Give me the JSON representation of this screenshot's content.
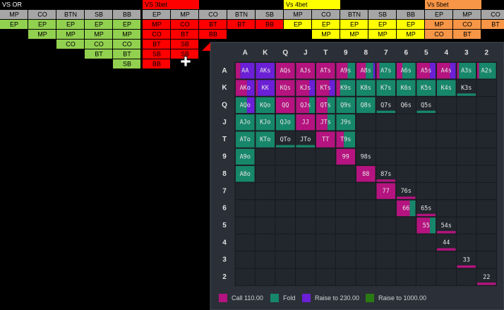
{
  "nav": {
    "groups": [
      {
        "title": "VS OR",
        "title_color": "#000000",
        "color": "#92d050",
        "headers": [
          "MP",
          "CO",
          "BTN",
          "SB",
          "BB"
        ],
        "rows": [
          [
            "EP",
            "EP",
            "EP",
            "EP",
            "EP"
          ],
          [
            null,
            "MP",
            "MP",
            "MP",
            "MP"
          ],
          [
            null,
            null,
            "CO",
            "CO",
            "CO"
          ],
          [
            null,
            null,
            null,
            "BT",
            "BT"
          ],
          [
            null,
            null,
            null,
            null,
            "SB"
          ]
        ]
      },
      {
        "title": "VS 3bet",
        "title_color": "#ff0000",
        "color": "#ff0000",
        "headers": [
          "EP",
          "MP",
          "CO",
          "BTN",
          "SB"
        ],
        "rows": [
          [
            "MP",
            "CO",
            "BT",
            "BT",
            "BB"
          ],
          [
            "CO",
            "BT",
            "BB",
            null,
            null
          ],
          [
            "BT",
            "SB",
            null,
            null,
            null
          ],
          [
            "SB",
            "SB",
            null,
            null,
            null
          ],
          [
            "BB",
            null,
            null,
            null,
            null
          ]
        ]
      },
      {
        "title": "Vs 4bet",
        "title_color": "#ffff00",
        "color": "#ffff00",
        "headers": [
          "MP",
          "CO",
          "BTN",
          "SB",
          "BB"
        ],
        "rows": [
          [
            "EP",
            "EP",
            "EP",
            "EP",
            "EP"
          ],
          [
            null,
            "MP",
            "MP",
            "MP",
            "MP"
          ]
        ]
      },
      {
        "title": "Vs 5bet",
        "title_color": "#f79646",
        "color": "#f79646",
        "headers": [
          "EP",
          "MP",
          "CO"
        ],
        "rows": [
          [
            "MP",
            "CO",
            "BT"
          ],
          [
            "CO",
            "BT",
            null
          ]
        ]
      }
    ]
  },
  "matrix": {
    "ranks": [
      "A",
      "K",
      "Q",
      "J",
      "T",
      "9",
      "8",
      "7",
      "6",
      "5",
      "4",
      "3",
      "2"
    ],
    "actions": [
      {
        "label": "Call 110.00",
        "color": "#b5137f"
      },
      {
        "label": "Fold",
        "color": "#17876b"
      },
      {
        "label": "Raise to 230.00",
        "color": "#6b1fd6"
      },
      {
        "label": "Raise to 1000.00",
        "color": "#2a7a14"
      }
    ],
    "cells": [
      [
        {
          "label": "AA",
          "weight": 1,
          "mix": [
            0.25,
            0,
            0.75,
            0
          ]
        },
        {
          "label": "AKs",
          "weight": 1,
          "mix": [
            0,
            0,
            1,
            0
          ]
        },
        {
          "label": "AQs",
          "weight": 1,
          "mix": [
            1,
            0,
            0,
            0
          ]
        },
        {
          "label": "AJs",
          "weight": 1,
          "mix": [
            1,
            0,
            0,
            0
          ]
        },
        {
          "label": "ATs",
          "weight": 1,
          "mix": [
            1,
            0,
            0,
            0
          ]
        },
        {
          "label": "A9s",
          "weight": 1,
          "mix": [
            0.6,
            0.4,
            0,
            0
          ]
        },
        {
          "label": "A8s",
          "weight": 1,
          "mix": [
            0.5,
            0.4,
            0.1,
            0
          ]
        },
        {
          "label": "A7s",
          "weight": 1,
          "mix": [
            0.15,
            0.85,
            0,
            0
          ]
        },
        {
          "label": "A6s",
          "weight": 1,
          "mix": [
            0.3,
            0.7,
            0,
            0
          ]
        },
        {
          "label": "A5s",
          "weight": 1,
          "mix": [
            0.7,
            0,
            0.3,
            0
          ]
        },
        {
          "label": "A4s",
          "weight": 1,
          "mix": [
            0.7,
            0,
            0.3,
            0
          ]
        },
        {
          "label": "A3s",
          "weight": 1,
          "mix": [
            0.1,
            0.9,
            0,
            0
          ]
        },
        {
          "label": "A2s",
          "weight": 1,
          "mix": [
            0.1,
            0.9,
            0,
            0
          ]
        }
      ],
      [
        {
          "label": "AKo",
          "weight": 1,
          "mix": [
            0.6,
            0,
            0.4,
            0
          ]
        },
        {
          "label": "KK",
          "weight": 1,
          "mix": [
            0.1,
            0,
            0.9,
            0
          ]
        },
        {
          "label": "KQs",
          "weight": 1,
          "mix": [
            1,
            0,
            0,
            0
          ]
        },
        {
          "label": "KJs",
          "weight": 1,
          "mix": [
            0.7,
            0,
            0.3,
            0
          ]
        },
        {
          "label": "KTs",
          "weight": 1,
          "mix": [
            0.7,
            0,
            0.3,
            0
          ]
        },
        {
          "label": "K9s",
          "weight": 1,
          "mix": [
            0.2,
            0.8,
            0,
            0
          ]
        },
        {
          "label": "K8s",
          "weight": 1,
          "mix": [
            0,
            1,
            0,
            0
          ]
        },
        {
          "label": "K7s",
          "weight": 1,
          "mix": [
            0,
            1,
            0,
            0
          ]
        },
        {
          "label": "K6s",
          "weight": 1,
          "mix": [
            0,
            1,
            0,
            0
          ]
        },
        {
          "label": "K5s",
          "weight": 1,
          "mix": [
            0,
            1,
            0,
            0
          ]
        },
        {
          "label": "K4s",
          "weight": 1,
          "mix": [
            0,
            1,
            0,
            0
          ]
        },
        {
          "label": "K3s",
          "weight": 0.15,
          "mix": [
            0,
            1,
            0,
            0
          ]
        },
        null
      ],
      [
        {
          "label": "AQo",
          "weight": 1,
          "mix": [
            0,
            0.6,
            0.4,
            0
          ]
        },
        {
          "label": "KQo",
          "weight": 1,
          "mix": [
            0,
            1,
            0,
            0
          ]
        },
        {
          "label": "QQ",
          "weight": 1,
          "mix": [
            1,
            0,
            0,
            0
          ]
        },
        {
          "label": "QJs",
          "weight": 1,
          "mix": [
            0.7,
            0.3,
            0,
            0
          ]
        },
        {
          "label": "QTs",
          "weight": 1,
          "mix": [
            0.6,
            0.4,
            0,
            0
          ]
        },
        {
          "label": "Q9s",
          "weight": 1,
          "mix": [
            0,
            1,
            0,
            0
          ]
        },
        {
          "label": "Q8s",
          "weight": 1,
          "mix": [
            0,
            1,
            0,
            0
          ]
        },
        {
          "label": "Q7s",
          "weight": 0.15,
          "mix": [
            0,
            1,
            0,
            0
          ]
        },
        {
          "label": "Q6s",
          "weight": 0,
          "mix": [
            0,
            1,
            0,
            0
          ]
        },
        {
          "label": "Q5s",
          "weight": 0.15,
          "mix": [
            0,
            1,
            0,
            0
          ]
        },
        null,
        null,
        null
      ],
      [
        {
          "label": "AJo",
          "weight": 1,
          "mix": [
            0,
            1,
            0,
            0
          ]
        },
        {
          "label": "KJo",
          "weight": 1,
          "mix": [
            0,
            1,
            0,
            0
          ]
        },
        {
          "label": "QJo",
          "weight": 1,
          "mix": [
            0,
            1,
            0,
            0
          ]
        },
        {
          "label": "JJ",
          "weight": 1,
          "mix": [
            1,
            0,
            0,
            0
          ]
        },
        {
          "label": "JTs",
          "weight": 1,
          "mix": [
            0.6,
            0.4,
            0,
            0
          ]
        },
        {
          "label": "J9s",
          "weight": 1,
          "mix": [
            0,
            1,
            0,
            0
          ]
        },
        null,
        null,
        null,
        null,
        null,
        null,
        null
      ],
      [
        {
          "label": "ATo",
          "weight": 1,
          "mix": [
            0,
            1,
            0,
            0
          ]
        },
        {
          "label": "KTo",
          "weight": 1,
          "mix": [
            0,
            1,
            0,
            0
          ]
        },
        {
          "label": "QTo",
          "weight": 0.15,
          "mix": [
            0,
            1,
            0,
            0
          ]
        },
        {
          "label": "JTo",
          "weight": 0.15,
          "mix": [
            0,
            1,
            0,
            0
          ]
        },
        {
          "label": "TT",
          "weight": 1,
          "mix": [
            1,
            0,
            0,
            0
          ]
        },
        {
          "label": "T9s",
          "weight": 1,
          "mix": [
            0.4,
            0.6,
            0,
            0
          ]
        },
        null,
        null,
        null,
        null,
        null,
        null,
        null
      ],
      [
        {
          "label": "A9o",
          "weight": 1,
          "mix": [
            0,
            1,
            0,
            0
          ]
        },
        null,
        null,
        null,
        null,
        {
          "label": "99",
          "weight": 1,
          "mix": [
            1,
            0,
            0,
            0
          ]
        },
        {
          "label": "98s",
          "weight": 0,
          "mix": [
            1,
            0,
            0,
            0
          ]
        },
        null,
        null,
        null,
        null,
        null,
        null
      ],
      [
        {
          "label": "A8o",
          "weight": 1,
          "mix": [
            0,
            1,
            0,
            0
          ]
        },
        null,
        null,
        null,
        null,
        null,
        {
          "label": "88",
          "weight": 1,
          "mix": [
            1,
            0,
            0,
            0
          ]
        },
        {
          "label": "87s",
          "weight": 0.15,
          "mix": [
            1,
            0,
            0,
            0
          ]
        },
        null,
        null,
        null,
        null,
        null
      ],
      [
        null,
        null,
        null,
        null,
        null,
        null,
        null,
        {
          "label": "77",
          "weight": 1,
          "mix": [
            1,
            0,
            0,
            0
          ]
        },
        {
          "label": "76s",
          "weight": 0.15,
          "mix": [
            1,
            0,
            0,
            0
          ]
        },
        null,
        null,
        null,
        null
      ],
      [
        null,
        null,
        null,
        null,
        null,
        null,
        null,
        null,
        {
          "label": "66",
          "weight": 1,
          "mix": [
            0.7,
            0.3,
            0,
            0
          ]
        },
        {
          "label": "65s",
          "weight": 0.15,
          "mix": [
            1,
            0,
            0,
            0
          ]
        },
        null,
        null,
        null
      ],
      [
        null,
        null,
        null,
        null,
        null,
        null,
        null,
        null,
        null,
        {
          "label": "55",
          "weight": 1,
          "mix": [
            0.7,
            0.3,
            0,
            0
          ]
        },
        {
          "label": "54s",
          "weight": 0.15,
          "mix": [
            1,
            0,
            0,
            0
          ]
        },
        null,
        null
      ],
      [
        null,
        null,
        null,
        null,
        null,
        null,
        null,
        null,
        null,
        null,
        {
          "label": "44",
          "weight": 0.15,
          "mix": [
            1,
            0,
            0,
            0
          ]
        },
        null,
        null
      ],
      [
        null,
        null,
        null,
        null,
        null,
        null,
        null,
        null,
        null,
        null,
        null,
        {
          "label": "33",
          "weight": 0.15,
          "mix": [
            1,
            0,
            0,
            0
          ]
        },
        null
      ],
      [
        null,
        null,
        null,
        null,
        null,
        null,
        null,
        null,
        null,
        null,
        null,
        null,
        {
          "label": "22",
          "weight": 0.15,
          "mix": [
            1,
            0,
            0,
            0
          ]
        }
      ]
    ]
  }
}
